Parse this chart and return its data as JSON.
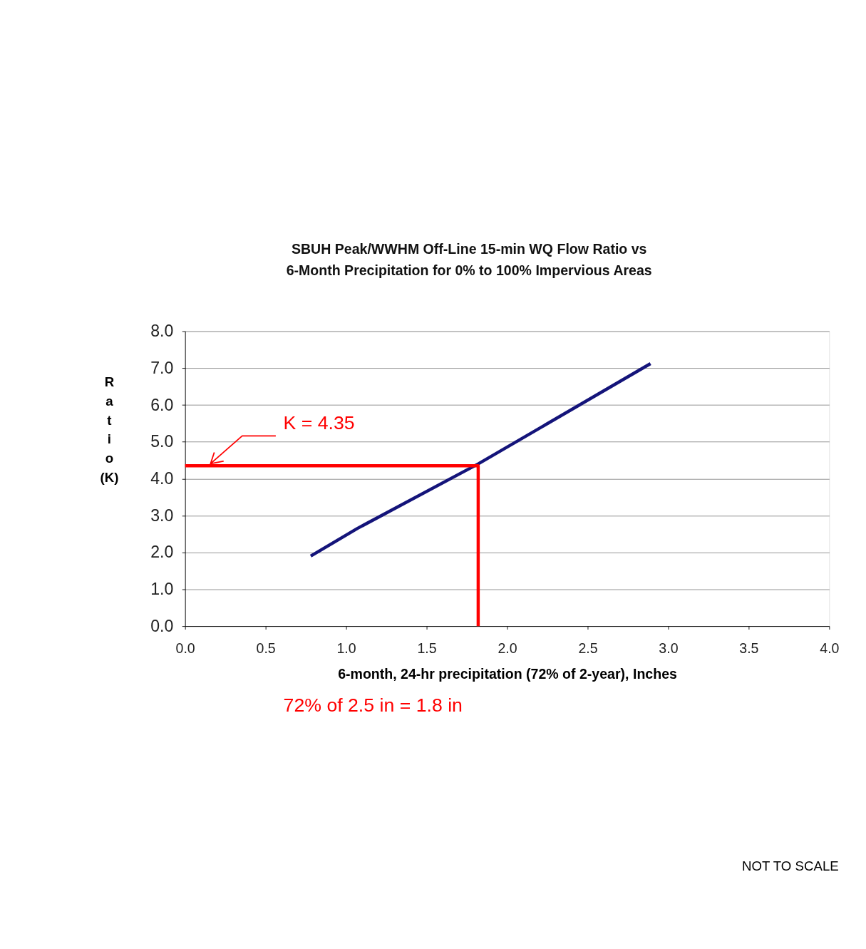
{
  "chart_data": {
    "type": "line",
    "title": [
      "SBUH Peak/WWHM Off-Line 15-min WQ Flow Ratio  vs",
      "6-Month Precipitation for 0% to 100% Impervious Areas"
    ],
    "xlabel": "6-month, 24-hr precipitation (72% of 2-year), Inches",
    "ylabel": "Ratio (K)",
    "series": [
      {
        "color": "#14147a",
        "x": [
          0.78,
          1.07,
          1.82,
          2.89
        ],
        "values": [
          1.9,
          2.65,
          4.4,
          7.12
        ]
      },
      {
        "color": "#ff0000",
        "x": [
          0.0,
          1.82,
          1.82
        ],
        "values": [
          4.35,
          4.35,
          0.0
        ]
      }
    ],
    "xlim": [
      0.0,
      4.0
    ],
    "xticks": [
      {
        "value": 0,
        "label": "0.0"
      },
      {
        "value": 0.5,
        "label": "0.5"
      },
      {
        "value": 1,
        "label": "1.0"
      },
      {
        "value": 1.5,
        "label": "1.5"
      },
      {
        "value": 2,
        "label": "2.0"
      },
      {
        "value": 2.5,
        "label": "2.5"
      },
      {
        "value": 3,
        "label": "3.0"
      },
      {
        "value": 3.5,
        "label": "3.5"
      },
      {
        "value": 4,
        "label": "4.0"
      }
    ],
    "ylim": [
      0.0,
      8.0
    ],
    "yticks": [
      {
        "value": 0,
        "label": "0.0"
      },
      {
        "value": 1,
        "label": "1.0"
      },
      {
        "value": 2,
        "label": "2.0"
      },
      {
        "value": 3,
        "label": "3.0"
      },
      {
        "value": 4,
        "label": "4.0"
      },
      {
        "value": 5,
        "label": "5.0"
      },
      {
        "value": 6,
        "label": "6.0"
      },
      {
        "value": 7,
        "label": "7.0"
      },
      {
        "value": 8,
        "label": "8.0"
      }
    ],
    "grid": "y",
    "legend": false,
    "annotations": [
      "K = 4.35",
      "72% of 2.5 in = 1.8 in",
      "NOT TO SCALE"
    ]
  }
}
